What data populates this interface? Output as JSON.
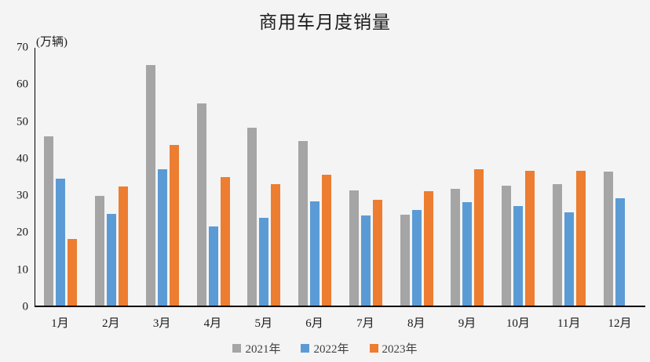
{
  "chart_data": {
    "type": "bar",
    "title": "商用车月度销量",
    "ylabel": "(万辆)",
    "categories": [
      "1月",
      "2月",
      "3月",
      "4月",
      "5月",
      "6月",
      "7月",
      "8月",
      "9月",
      "10月",
      "11月",
      "12月"
    ],
    "series": [
      {
        "name": "2021年",
        "color": "#A5A5A5",
        "values": [
          45.9,
          29.8,
          65.3,
          55.0,
          48.2,
          44.6,
          31.3,
          24.7,
          31.7,
          32.6,
          33.0,
          36.4
        ]
      },
      {
        "name": "2022年",
        "color": "#5B9BD5",
        "values": [
          34.5,
          25.0,
          37.0,
          21.5,
          23.8,
          28.2,
          24.5,
          25.9,
          28.0,
          27.1,
          25.4,
          29.2
        ]
      },
      {
        "name": "2023年",
        "color": "#ED7D31",
        "values": [
          18.1,
          32.4,
          43.6,
          34.9,
          33.0,
          35.5,
          28.8,
          31.1,
          37.1,
          36.6,
          36.5,
          null
        ]
      }
    ],
    "ylim": [
      0,
      70
    ],
    "y_ticks": [
      0,
      10,
      20,
      30,
      40,
      50,
      60,
      70
    ],
    "grid": false,
    "legend_position": "bottom"
  }
}
